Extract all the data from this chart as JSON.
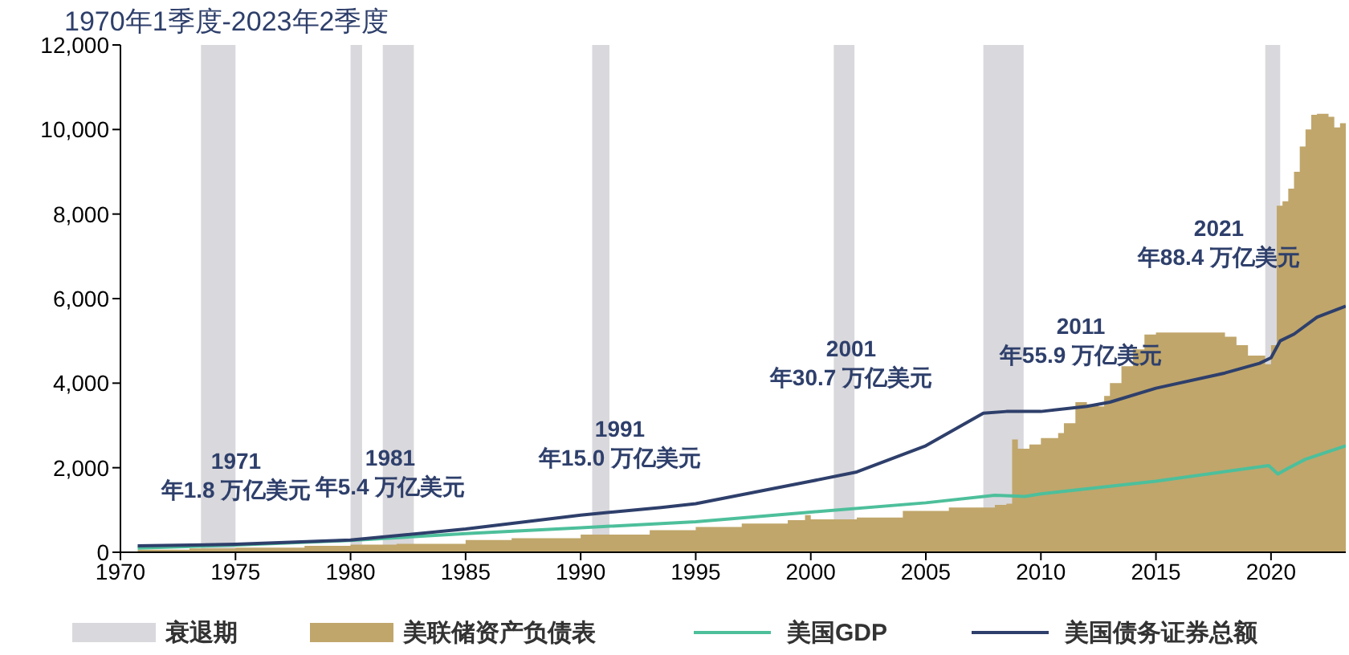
{
  "chart_data": {
    "type": "area",
    "title": "1970年1季度-2023年2季度",
    "series": [
      {
        "name": "美联储资产负债表",
        "color": "#c0a66b",
        "x": [
          1970.75,
          1973,
          1975,
          1978,
          1980,
          1982,
          1985,
          1987,
          1990,
          1993,
          1995,
          1997,
          1999,
          1999.75,
          2000,
          2002,
          2004,
          2006,
          2008,
          2008.5,
          2008.75,
          2009,
          2009.5,
          2010,
          2010.75,
          2011,
          2011.5,
          2012,
          2012.5,
          2012.75,
          2013,
          2013.5,
          2014,
          2014.5,
          2015,
          2017,
          2018,
          2018.5,
          2019,
          2019.75,
          2020,
          2020.25,
          2020.5,
          2020.75,
          2021,
          2021.25,
          2021.5,
          2021.75,
          2022,
          2022.5,
          2022.75,
          2023,
          2023.25
        ],
        "values": [
          60,
          90,
          110,
          150,
          180,
          200,
          290,
          330,
          420,
          520,
          600,
          680,
          760,
          880,
          780,
          820,
          980,
          1060,
          1120,
          1150,
          2670,
          2450,
          2550,
          2700,
          2820,
          3050,
          3550,
          3500,
          3450,
          3700,
          4000,
          4400,
          4800,
          5150,
          5200,
          5200,
          5100,
          4900,
          4650,
          4450,
          4900,
          8200,
          8300,
          8600,
          9000,
          9600,
          10000,
          10350,
          10370,
          10300,
          10050,
          10150,
          10000
        ]
      },
      {
        "name": "美国GDP",
        "type": "line",
        "color": "#4dbf9b",
        "x": [
          1970.75,
          1975,
          1980,
          1985,
          1990,
          1995,
          2000,
          2005,
          2008,
          2009.3,
          2010,
          2015,
          2019.9,
          2020.3,
          2020.75,
          2021.5,
          2023.25
        ],
        "values": [
          100,
          170,
          280,
          440,
          580,
          720,
          950,
          1170,
          1350,
          1320,
          1380,
          1680,
          2050,
          1850,
          1990,
          2200,
          2520
        ]
      },
      {
        "name": "美国债务证券总额",
        "type": "line",
        "color": "#2e3f6b",
        "x": [
          1970.75,
          1975,
          1980,
          1985,
          1990,
          1993.5,
          1995,
          2000,
          2002,
          2005,
          2007.5,
          2008.5,
          2010,
          2012,
          2013,
          2015,
          2018,
          2019.5,
          2020,
          2020.4,
          2021,
          2022,
          2023.25
        ],
        "values": [
          150,
          190,
          290,
          550,
          880,
          1060,
          1150,
          1680,
          1900,
          2520,
          3290,
          3330,
          3330,
          3450,
          3550,
          3880,
          4240,
          4470,
          4600,
          5000,
          5160,
          5560,
          5820
        ]
      }
    ],
    "bands": [
      {
        "axis": "x",
        "from": 1973.5,
        "to": 1975,
        "label": "衰退期",
        "color": "#d9d8dc"
      },
      {
        "axis": "x",
        "from": 1980,
        "to": 1980.5,
        "color": "#d9d8dc"
      },
      {
        "axis": "x",
        "from": 1981.4,
        "to": 1982.75,
        "color": "#d9d8dc"
      },
      {
        "axis": "x",
        "from": 1990.5,
        "to": 1991.25,
        "color": "#d9d8dc"
      },
      {
        "axis": "x",
        "from": 2001,
        "to": 2001.9,
        "color": "#d9d8dc"
      },
      {
        "axis": "x",
        "from": 2007.5,
        "to": 2009.25,
        "color": "#d9d8dc"
      },
      {
        "axis": "x",
        "from": 2019.75,
        "to": 2020.4,
        "color": "#d9d8dc"
      }
    ],
    "annotations": [
      "1971\n年1.8 万亿美元",
      "1981\n年5.4 万亿美元",
      "1991\n年15.0 万亿美元",
      "2001\n年30.7 万亿美元",
      "2011\n年55.9 万亿美元",
      "2021\n年88.4 万亿美元"
    ],
    "xlim": [
      1970,
      2023.25
    ],
    "xticks": [
      1970,
      1975,
      1980,
      1985,
      1990,
      1995,
      2000,
      2005,
      2010,
      2015,
      2020
    ],
    "ylim": [
      0,
      12000
    ],
    "yticks": [
      0,
      {
        "value": 2000,
        "label": "2,000"
      },
      {
        "value": 4000,
        "label": "4,000"
      },
      {
        "value": 6000,
        "label": "6,000"
      },
      {
        "value": 8000,
        "label": "8,000"
      },
      {
        "value": 10000,
        "label": "10,000"
      },
      {
        "value": 12000,
        "label": "12,000"
      }
    ],
    "legend": "bottom"
  }
}
